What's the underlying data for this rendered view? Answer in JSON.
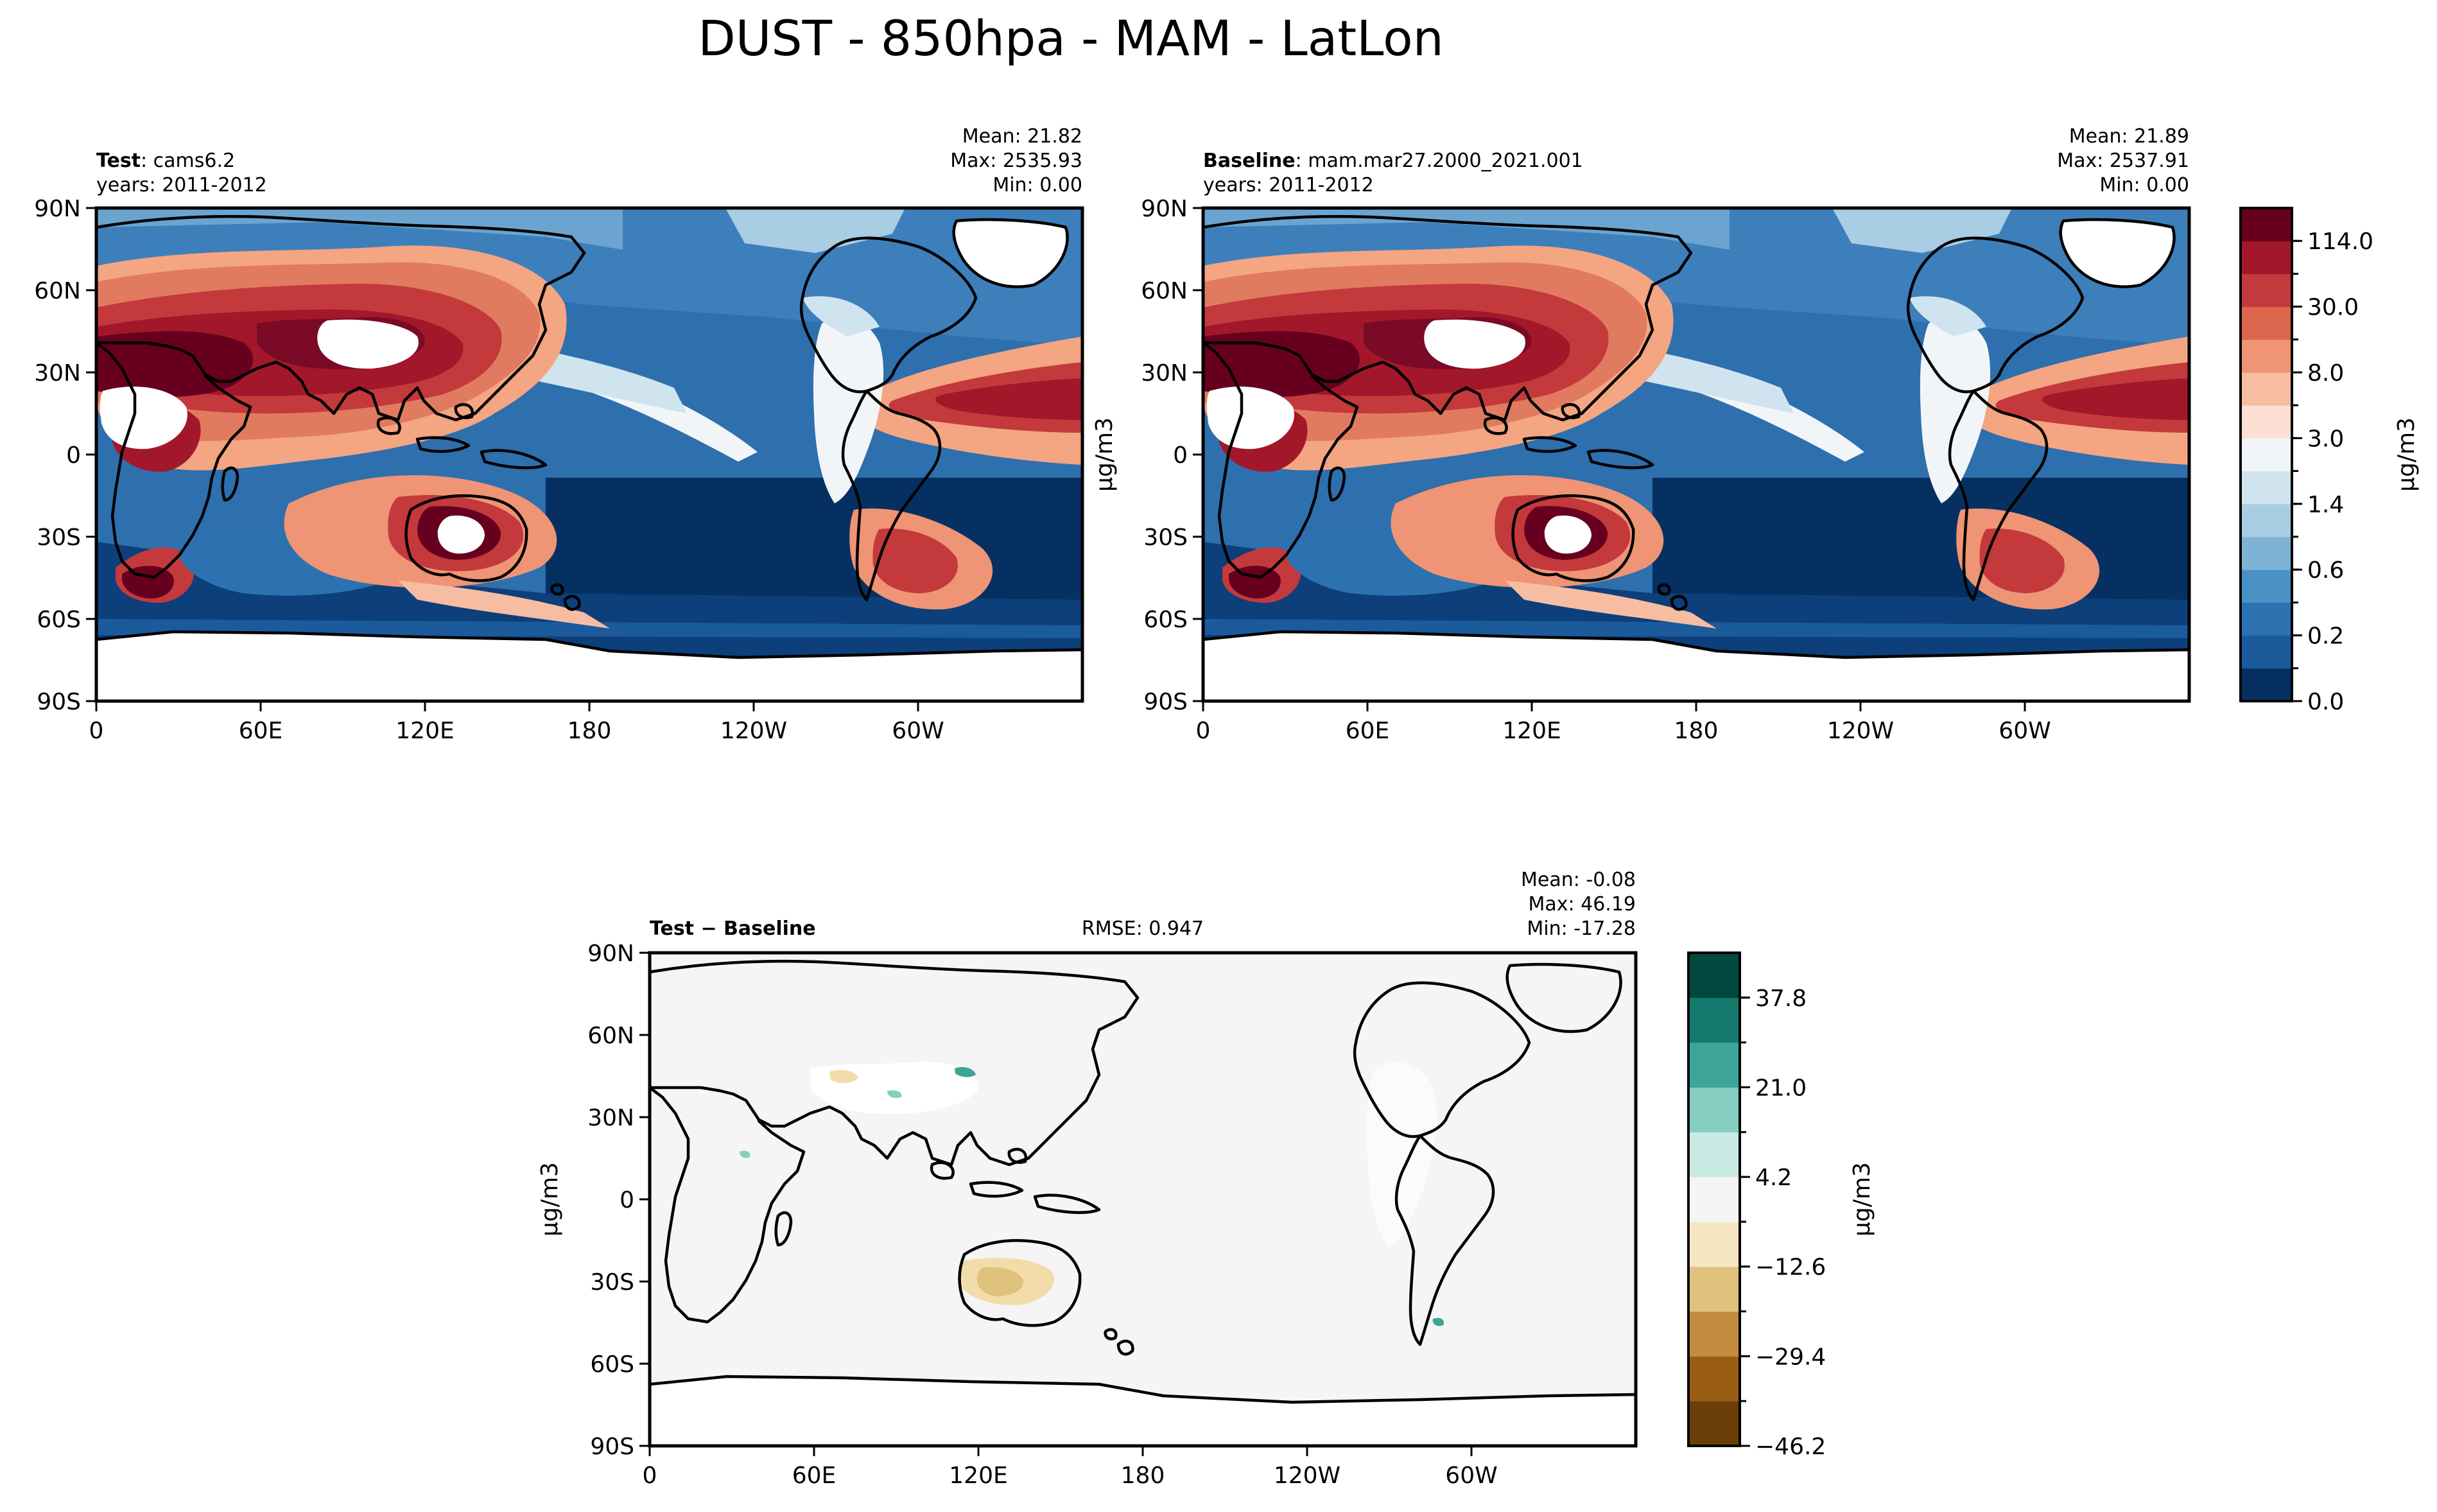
{
  "figure": {
    "title": "DUST - 850hpa - MAM - LatLon",
    "lon_ticks": [
      "0",
      "60E",
      "120E",
      "180",
      "120W",
      "60W"
    ],
    "lat_ticks": [
      "90N",
      "60N",
      "30N",
      "0",
      "30S",
      "60S",
      "90S"
    ]
  },
  "panels": [
    {
      "id": "test",
      "name_bold": "Test",
      "name_rest": ": cams6.2",
      "years": "years: 2011-2012",
      "mean": "Mean: 21.82",
      "max": "Max: 2535.93",
      "min": "Min:  0.00",
      "units": "μg/m3"
    },
    {
      "id": "baseline",
      "name_bold": "Baseline",
      "name_rest": ": mam.mar27.2000_2021.001",
      "years": "years: 2011-2012",
      "mean": "Mean: 21.89",
      "max": "Max: 2537.91",
      "min": "Min:  0.00",
      "units": "μg/m3"
    },
    {
      "id": "diff",
      "name_bold": "Test − Baseline",
      "rmse": "RMSE: 0.947",
      "mean": "Mean: -0.08",
      "max": "Max: 46.19",
      "min": "Min: -17.28",
      "units": "μg/m3"
    }
  ],
  "colorbars": {
    "main": {
      "label": "μg/m3",
      "colors": [
        "#053061",
        "#1b5a9b",
        "#2c72b0",
        "#4a92c4",
        "#7db4d5",
        "#a8cee3",
        "#d0e4ef",
        "#f2f5f7",
        "#fbe0d3",
        "#f7bda3",
        "#ef9474",
        "#dc654e",
        "#c4393b",
        "#a3172b",
        "#67001f"
      ],
      "tick_labels": [
        "0.0",
        "0.2",
        "0.6",
        "1.4",
        "3.0",
        "8.0",
        "30.0",
        "114.0"
      ]
    },
    "diff": {
      "label": "μg/m3",
      "colors": [
        "#6b3e07",
        "#9a5d15",
        "#c38d40",
        "#dfc27e",
        "#f5e6c4",
        "#f4f5f4",
        "#c8eae3",
        "#85cdc1",
        "#3ca597",
        "#157a6d",
        "#01483e"
      ],
      "tick_labels": [
        "−46.2",
        "−29.4",
        "−12.6",
        "4.2",
        "21.0",
        "37.8"
      ]
    }
  },
  "field_colors": {
    "dust_high": "#67001f",
    "dust_mid": "#d6604d",
    "dust_low": "#f4a582",
    "clean_deep": "#053061",
    "clean_mid": "#2166ac",
    "clean_light": "#92c5de",
    "neutral": "#f7f7f7",
    "diff_background": "#f4f5f4",
    "diff_tan": "#f2dca9",
    "diff_brown": "#d9b46b",
    "diff_teal": "#3ca597"
  }
}
